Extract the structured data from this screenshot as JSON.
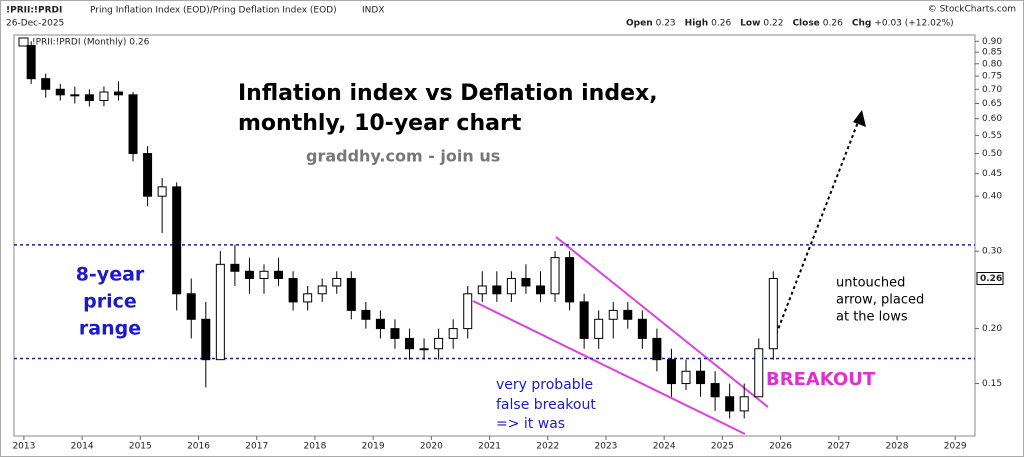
{
  "header": {
    "symbol": "!PRII:!PRDI",
    "name": "Pring Inflation Index (EOD)/Pring Deflation Index (EOD)",
    "exchange": "INDX",
    "date": "26-Dec-2025",
    "quote": [
      {
        "label": "Open",
        "value": "0.23"
      },
      {
        "label": "High",
        "value": "0.26"
      },
      {
        "label": "Low",
        "value": "0.22"
      },
      {
        "label": "Close",
        "value": "0.26"
      },
      {
        "label": "Chg",
        "value": "+0.03 (+12.02%)"
      }
    ],
    "credit": "© StockCharts.com"
  },
  "chart_data": {
    "type": "candlestick",
    "legend": "!PRII:!PRDI (Monthly) 0.26",
    "title": [
      "Inflation index vs Deflation index,",
      "monthly, 10-year chart"
    ],
    "subtitle": "graddhy.com - join us",
    "annotations": {
      "range": [
        "8-year",
        "price",
        "range"
      ],
      "false_breakout": [
        "very probable",
        "false breakout",
        "=> it was"
      ],
      "breakout": "BREAKOUT",
      "arrow_note": [
        "untouched",
        "arrow, placed",
        "at the lows"
      ]
    },
    "last_value": 0.26,
    "x": [
      2013,
      2013.25,
      2013.5,
      2013.75,
      2014,
      2014.25,
      2014.5,
      2014.75,
      2015,
      2015.25,
      2015.5,
      2015.75,
      2016,
      2016.25,
      2016.5,
      2016.75,
      2017,
      2017.25,
      2017.5,
      2017.75,
      2018,
      2018.25,
      2018.5,
      2018.75,
      2019,
      2019.25,
      2019.5,
      2019.75,
      2020,
      2020.25,
      2020.5,
      2020.75,
      2021,
      2021.25,
      2021.5,
      2021.75,
      2022,
      2022.25,
      2022.5,
      2022.75,
      2023,
      2023.25,
      2023.5,
      2023.75,
      2024,
      2024.25,
      2024.5,
      2024.75,
      2025,
      2025.25,
      2025.5,
      2025.75
    ],
    "open": [
      0.88,
      0.74,
      0.7,
      0.68,
      0.68,
      0.66,
      0.69,
      0.68,
      0.5,
      0.4,
      0.42,
      0.24,
      0.21,
      0.17,
      0.28,
      0.27,
      0.26,
      0.27,
      0.26,
      0.23,
      0.24,
      0.25,
      0.26,
      0.22,
      0.21,
      0.2,
      0.19,
      0.18,
      0.18,
      0.19,
      0.2,
      0.24,
      0.25,
      0.24,
      0.26,
      0.25,
      0.24,
      0.29,
      0.23,
      0.19,
      0.21,
      0.22,
      0.21,
      0.19,
      0.17,
      0.15,
      0.16,
      0.15,
      0.14,
      0.13,
      0.14,
      0.18
    ],
    "high": [
      0.9,
      0.76,
      0.72,
      0.71,
      0.7,
      0.71,
      0.73,
      0.69,
      0.52,
      0.44,
      0.43,
      0.26,
      0.23,
      0.3,
      0.31,
      0.29,
      0.28,
      0.29,
      0.27,
      0.25,
      0.26,
      0.27,
      0.27,
      0.23,
      0.22,
      0.21,
      0.2,
      0.19,
      0.2,
      0.21,
      0.25,
      0.27,
      0.27,
      0.27,
      0.28,
      0.27,
      0.3,
      0.3,
      0.24,
      0.22,
      0.23,
      0.23,
      0.22,
      0.2,
      0.18,
      0.17,
      0.17,
      0.16,
      0.15,
      0.15,
      0.19,
      0.27
    ],
    "low": [
      0.72,
      0.67,
      0.66,
      0.65,
      0.64,
      0.64,
      0.66,
      0.48,
      0.38,
      0.33,
      0.22,
      0.19,
      0.147,
      0.17,
      0.25,
      0.24,
      0.24,
      0.25,
      0.22,
      0.22,
      0.23,
      0.24,
      0.21,
      0.2,
      0.19,
      0.18,
      0.17,
      0.17,
      0.17,
      0.18,
      0.19,
      0.23,
      0.23,
      0.23,
      0.24,
      0.23,
      0.23,
      0.22,
      0.18,
      0.18,
      0.19,
      0.2,
      0.18,
      0.16,
      0.14,
      0.145,
      0.14,
      0.13,
      0.125,
      0.125,
      0.14,
      0.17
    ],
    "close": [
      0.74,
      0.7,
      0.68,
      0.68,
      0.66,
      0.69,
      0.68,
      0.5,
      0.4,
      0.42,
      0.24,
      0.21,
      0.17,
      0.28,
      0.27,
      0.26,
      0.27,
      0.26,
      0.23,
      0.24,
      0.25,
      0.26,
      0.22,
      0.21,
      0.2,
      0.19,
      0.18,
      0.18,
      0.19,
      0.2,
      0.24,
      0.25,
      0.24,
      0.26,
      0.25,
      0.24,
      0.29,
      0.23,
      0.19,
      0.21,
      0.22,
      0.21,
      0.19,
      0.17,
      0.15,
      0.16,
      0.15,
      0.14,
      0.13,
      0.14,
      0.18,
      0.26
    ],
    "up_color": "#ffffff",
    "down_color": "#000000",
    "levels": [
      0.31,
      0.171
    ],
    "level_color": "#1a1aa6",
    "log_y": true,
    "grid": false,
    "xlim": [
      2012.83,
      2029.34
    ],
    "xticks": [
      2013,
      2014,
      2015,
      2016,
      2017,
      2018,
      2019,
      2020,
      2021,
      2022,
      2023,
      2024,
      2025,
      2026,
      2027,
      2028,
      2029
    ],
    "ylim": [
      0.114,
      0.93
    ],
    "yticks": [
      {
        "value": 0.9,
        "label": "0.90"
      },
      0.85,
      {
        "value": 0.8,
        "label": "0.80"
      },
      0.75,
      {
        "value": 0.7,
        "label": "0.70"
      },
      0.65,
      {
        "value": 0.6,
        "label": "0.60"
      },
      0.55,
      {
        "value": 0.5,
        "label": "0.50"
      },
      0.45,
      {
        "value": 0.4,
        "label": "0.40"
      },
      {
        "value": 0.3,
        "label": "0.30"
      },
      {
        "value": 0.2,
        "label": "0.20"
      },
      0.15
    ]
  }
}
